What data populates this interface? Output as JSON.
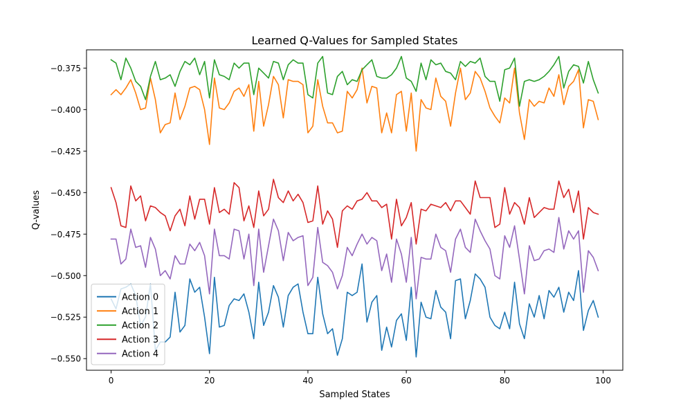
{
  "chart_data": {
    "type": "line",
    "title": "Learned Q-Values for Sampled States",
    "xlabel": "Sampled States",
    "ylabel": "Q-values",
    "xlim": [
      -5,
      104
    ],
    "ylim": [
      -0.557,
      -0.364
    ],
    "x_ticks": [
      0,
      20,
      40,
      60,
      80,
      100
    ],
    "x_tick_labels": [
      "0",
      "20",
      "40",
      "60",
      "80",
      "100"
    ],
    "y_ticks": [
      -0.55,
      -0.525,
      -0.5,
      -0.475,
      -0.45,
      -0.425,
      -0.4,
      -0.375
    ],
    "y_tick_labels": [
      "−0.550",
      "−0.525",
      "−0.500",
      "−0.475",
      "−0.450",
      "−0.425",
      "−0.400",
      "−0.375"
    ],
    "grid": false,
    "legend_position": "lower-left",
    "x": [
      0,
      1,
      2,
      3,
      4,
      5,
      6,
      7,
      8,
      9,
      10,
      11,
      12,
      13,
      14,
      15,
      16,
      17,
      18,
      19,
      20,
      21,
      22,
      23,
      24,
      25,
      26,
      27,
      28,
      29,
      30,
      31,
      32,
      33,
      34,
      35,
      36,
      37,
      38,
      39,
      40,
      41,
      42,
      43,
      44,
      45,
      46,
      47,
      48,
      49,
      50,
      51,
      52,
      53,
      54,
      55,
      56,
      57,
      58,
      59,
      60,
      61,
      62,
      63,
      64,
      65,
      66,
      67,
      68,
      69,
      70,
      71,
      72,
      73,
      74,
      75,
      76,
      77,
      78,
      79,
      80,
      81,
      82,
      83,
      84,
      85,
      86,
      87,
      88,
      89,
      90,
      91,
      92,
      93,
      94,
      95,
      96,
      97,
      98,
      99
    ],
    "series": [
      {
        "name": "Action 0",
        "color": "#1f77b4",
        "values": [
          -0.514,
          -0.52,
          -0.508,
          -0.507,
          -0.505,
          -0.512,
          -0.53,
          -0.525,
          -0.505,
          -0.545,
          -0.54,
          -0.54,
          -0.537,
          -0.51,
          -0.534,
          -0.53,
          -0.502,
          -0.51,
          -0.507,
          -0.525,
          -0.547,
          -0.501,
          -0.531,
          -0.53,
          -0.518,
          -0.514,
          -0.515,
          -0.511,
          -0.522,
          -0.538,
          -0.504,
          -0.53,
          -0.522,
          -0.506,
          -0.513,
          -0.531,
          -0.512,
          -0.507,
          -0.505,
          -0.522,
          -0.535,
          -0.535,
          -0.501,
          -0.523,
          -0.535,
          -0.532,
          -0.548,
          -0.538,
          -0.51,
          -0.512,
          -0.51,
          -0.493,
          -0.528,
          -0.516,
          -0.512,
          -0.545,
          -0.531,
          -0.543,
          -0.527,
          -0.523,
          -0.539,
          -0.507,
          -0.549,
          -0.516,
          -0.525,
          -0.526,
          -0.509,
          -0.519,
          -0.522,
          -0.538,
          -0.503,
          -0.502,
          -0.526,
          -0.515,
          -0.499,
          -0.502,
          -0.507,
          -0.525,
          -0.53,
          -0.532,
          -0.522,
          -0.532,
          -0.504,
          -0.529,
          -0.538,
          -0.517,
          -0.525,
          -0.512,
          -0.526,
          -0.509,
          -0.513,
          -0.507,
          -0.522,
          -0.51,
          -0.515,
          -0.497,
          -0.533,
          -0.521,
          -0.515,
          -0.525
        ]
      },
      {
        "name": "Action 1",
        "color": "#ff7f0e",
        "values": [
          -0.391,
          -0.388,
          -0.391,
          -0.387,
          -0.382,
          -0.39,
          -0.4,
          -0.399,
          -0.381,
          -0.394,
          -0.414,
          -0.409,
          -0.408,
          -0.39,
          -0.406,
          -0.398,
          -0.387,
          -0.386,
          -0.388,
          -0.4,
          -0.421,
          -0.381,
          -0.399,
          -0.4,
          -0.396,
          -0.389,
          -0.387,
          -0.392,
          -0.385,
          -0.413,
          -0.383,
          -0.41,
          -0.397,
          -0.38,
          -0.385,
          -0.405,
          -0.382,
          -0.383,
          -0.383,
          -0.385,
          -0.414,
          -0.41,
          -0.382,
          -0.398,
          -0.408,
          -0.408,
          -0.414,
          -0.413,
          -0.389,
          -0.393,
          -0.388,
          -0.375,
          -0.396,
          -0.386,
          -0.387,
          -0.414,
          -0.402,
          -0.414,
          -0.391,
          -0.389,
          -0.413,
          -0.39,
          -0.425,
          -0.394,
          -0.399,
          -0.4,
          -0.381,
          -0.392,
          -0.395,
          -0.41,
          -0.39,
          -0.375,
          -0.394,
          -0.39,
          -0.377,
          -0.381,
          -0.389,
          -0.399,
          -0.404,
          -0.408,
          -0.393,
          -0.396,
          -0.375,
          -0.402,
          -0.418,
          -0.394,
          -0.398,
          -0.395,
          -0.396,
          -0.387,
          -0.392,
          -0.379,
          -0.397,
          -0.386,
          -0.383,
          -0.376,
          -0.411,
          -0.394,
          -0.395,
          -0.406
        ]
      },
      {
        "name": "Action 2",
        "color": "#2ca02c",
        "values": [
          -0.37,
          -0.372,
          -0.382,
          -0.369,
          -0.375,
          -0.383,
          -0.386,
          -0.394,
          -0.38,
          -0.371,
          -0.382,
          -0.381,
          -0.379,
          -0.386,
          -0.377,
          -0.371,
          -0.373,
          -0.369,
          -0.379,
          -0.371,
          -0.393,
          -0.37,
          -0.379,
          -0.38,
          -0.382,
          -0.372,
          -0.375,
          -0.372,
          -0.372,
          -0.391,
          -0.375,
          -0.378,
          -0.381,
          -0.371,
          -0.372,
          -0.382,
          -0.373,
          -0.37,
          -0.372,
          -0.372,
          -0.391,
          -0.393,
          -0.372,
          -0.368,
          -0.39,
          -0.391,
          -0.38,
          -0.377,
          -0.385,
          -0.382,
          -0.383,
          -0.376,
          -0.373,
          -0.37,
          -0.38,
          -0.381,
          -0.381,
          -0.379,
          -0.375,
          -0.368,
          -0.381,
          -0.383,
          -0.389,
          -0.372,
          -0.382,
          -0.37,
          -0.373,
          -0.372,
          -0.377,
          -0.378,
          -0.382,
          -0.371,
          -0.374,
          -0.371,
          -0.372,
          -0.369,
          -0.38,
          -0.383,
          -0.383,
          -0.395,
          -0.376,
          -0.375,
          -0.369,
          -0.398,
          -0.383,
          -0.382,
          -0.383,
          -0.382,
          -0.38,
          -0.377,
          -0.373,
          -0.368,
          -0.387,
          -0.377,
          -0.373,
          -0.374,
          -0.384,
          -0.371,
          -0.382,
          -0.39
        ]
      },
      {
        "name": "Action 3",
        "color": "#d62728",
        "values": [
          -0.447,
          -0.456,
          -0.47,
          -0.471,
          -0.446,
          -0.455,
          -0.452,
          -0.467,
          -0.458,
          -0.459,
          -0.462,
          -0.464,
          -0.473,
          -0.464,
          -0.46,
          -0.47,
          -0.452,
          -0.466,
          -0.454,
          -0.454,
          -0.469,
          -0.447,
          -0.462,
          -0.46,
          -0.463,
          -0.444,
          -0.447,
          -0.467,
          -0.458,
          -0.471,
          -0.449,
          -0.464,
          -0.46,
          -0.442,
          -0.453,
          -0.456,
          -0.449,
          -0.455,
          -0.451,
          -0.456,
          -0.468,
          -0.467,
          -0.446,
          -0.469,
          -0.461,
          -0.466,
          -0.483,
          -0.461,
          -0.458,
          -0.46,
          -0.455,
          -0.454,
          -0.45,
          -0.455,
          -0.455,
          -0.459,
          -0.457,
          -0.478,
          -0.454,
          -0.47,
          -0.465,
          -0.456,
          -0.481,
          -0.46,
          -0.461,
          -0.457,
          -0.458,
          -0.459,
          -0.456,
          -0.461,
          -0.455,
          -0.455,
          -0.459,
          -0.463,
          -0.443,
          -0.453,
          -0.453,
          -0.453,
          -0.471,
          -0.469,
          -0.447,
          -0.463,
          -0.456,
          -0.459,
          -0.469,
          -0.453,
          -0.465,
          -0.462,
          -0.459,
          -0.46,
          -0.46,
          -0.443,
          -0.453,
          -0.448,
          -0.462,
          -0.449,
          -0.478,
          -0.459,
          -0.462,
          -0.463
        ]
      },
      {
        "name": "Action 4",
        "color": "#9467bd",
        "values": [
          -0.478,
          -0.478,
          -0.493,
          -0.49,
          -0.472,
          -0.483,
          -0.482,
          -0.495,
          -0.477,
          -0.484,
          -0.5,
          -0.497,
          -0.502,
          -0.488,
          -0.493,
          -0.493,
          -0.481,
          -0.485,
          -0.48,
          -0.488,
          -0.511,
          -0.472,
          -0.488,
          -0.488,
          -0.49,
          -0.472,
          -0.473,
          -0.49,
          -0.475,
          -0.506,
          -0.472,
          -0.498,
          -0.482,
          -0.466,
          -0.473,
          -0.491,
          -0.474,
          -0.479,
          -0.477,
          -0.476,
          -0.506,
          -0.501,
          -0.471,
          -0.492,
          -0.494,
          -0.498,
          -0.508,
          -0.5,
          -0.483,
          -0.488,
          -0.481,
          -0.475,
          -0.481,
          -0.477,
          -0.479,
          -0.497,
          -0.487,
          -0.504,
          -0.478,
          -0.487,
          -0.504,
          -0.477,
          -0.514,
          -0.489,
          -0.49,
          -0.49,
          -0.475,
          -0.483,
          -0.485,
          -0.498,
          -0.478,
          -0.472,
          -0.483,
          -0.486,
          -0.466,
          -0.473,
          -0.479,
          -0.484,
          -0.5,
          -0.502,
          -0.476,
          -0.483,
          -0.47,
          -0.49,
          -0.511,
          -0.482,
          -0.491,
          -0.49,
          -0.485,
          -0.484,
          -0.486,
          -0.465,
          -0.484,
          -0.473,
          -0.478,
          -0.473,
          -0.51,
          -0.485,
          -0.489,
          -0.497
        ]
      }
    ]
  }
}
